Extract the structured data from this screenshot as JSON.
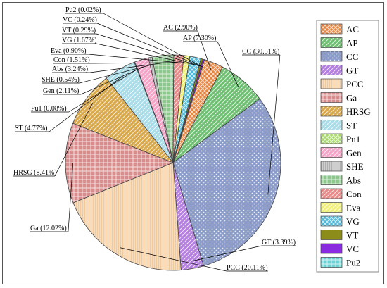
{
  "chart_data": {
    "type": "pie",
    "title": "",
    "legend_position": "right",
    "slices": [
      {
        "label": "AC",
        "value": 2.9,
        "data_label": "AC (2.90%)",
        "color": "#E8843E",
        "pattern": "crosshatch"
      },
      {
        "label": "AP",
        "value": 7.3,
        "data_label": "AP (7.30%)",
        "color": "#6FBF73",
        "pattern": "diag"
      },
      {
        "label": "CC",
        "value": 30.51,
        "data_label": "CC (30.51%)",
        "color": "#8C9CC8",
        "pattern": "dots"
      },
      {
        "label": "GT",
        "value": 3.39,
        "data_label": "GT (3.39%)",
        "color": "#B47FE0",
        "pattern": "diag"
      },
      {
        "label": "PCC",
        "value": 20.11,
        "data_label": "PCC (20.11%)",
        "color": "#F2C99A",
        "pattern": "vlines"
      },
      {
        "label": "Ga",
        "value": 12.02,
        "data_label": "Ga (12.02%)",
        "color": "#D98C8C",
        "pattern": "grid"
      },
      {
        "label": "HRSG",
        "value": 8.41,
        "data_label": "HRSG (8.41%)",
        "color": "#D9A84A",
        "pattern": "diag"
      },
      {
        "label": "ST",
        "value": 4.77,
        "data_label": "ST (4.77%)",
        "color": "#A8DCE8",
        "pattern": "diag"
      },
      {
        "label": "Pu1",
        "value": 0.08,
        "data_label": "Pu1 (0.08%)",
        "color": "#A6D96A",
        "pattern": "crosshatch"
      },
      {
        "label": "Gen",
        "value": 2.11,
        "data_label": "Gen (2.11%)",
        "color": "#F5A3C7",
        "pattern": "diag"
      },
      {
        "label": "SHE",
        "value": 0.54,
        "data_label": "SHE (0.54%)",
        "color": "#B0B0B0",
        "pattern": "vlines"
      },
      {
        "label": "Abs",
        "value": 3.24,
        "data_label": "Abs (3.24%)",
        "color": "#8CC88C",
        "pattern": "grid"
      },
      {
        "label": "Con",
        "value": 1.51,
        "data_label": "Con (1.51%)",
        "color": "#E88A8A",
        "pattern": "diag"
      },
      {
        "label": "Eva",
        "value": 0.9,
        "data_label": "Eva (0.90%)",
        "color": "#F0F07A",
        "pattern": "diag"
      },
      {
        "label": "VG",
        "value": 1.67,
        "data_label": "VG (1.67%)",
        "color": "#4DB8D9",
        "pattern": "crosshatch"
      },
      {
        "label": "VT",
        "value": 0.29,
        "data_label": "VT (0.29%)",
        "color": "#8C8C1A",
        "pattern": "solid"
      },
      {
        "label": "VC",
        "value": 0.24,
        "data_label": "VC (0.24%)",
        "color": "#8A2BE2",
        "pattern": "solid"
      },
      {
        "label": "Pu2",
        "value": 0.02,
        "data_label": "Pu2 (0.02%)",
        "color": "#6AD4D4",
        "pattern": "grid"
      }
    ]
  }
}
